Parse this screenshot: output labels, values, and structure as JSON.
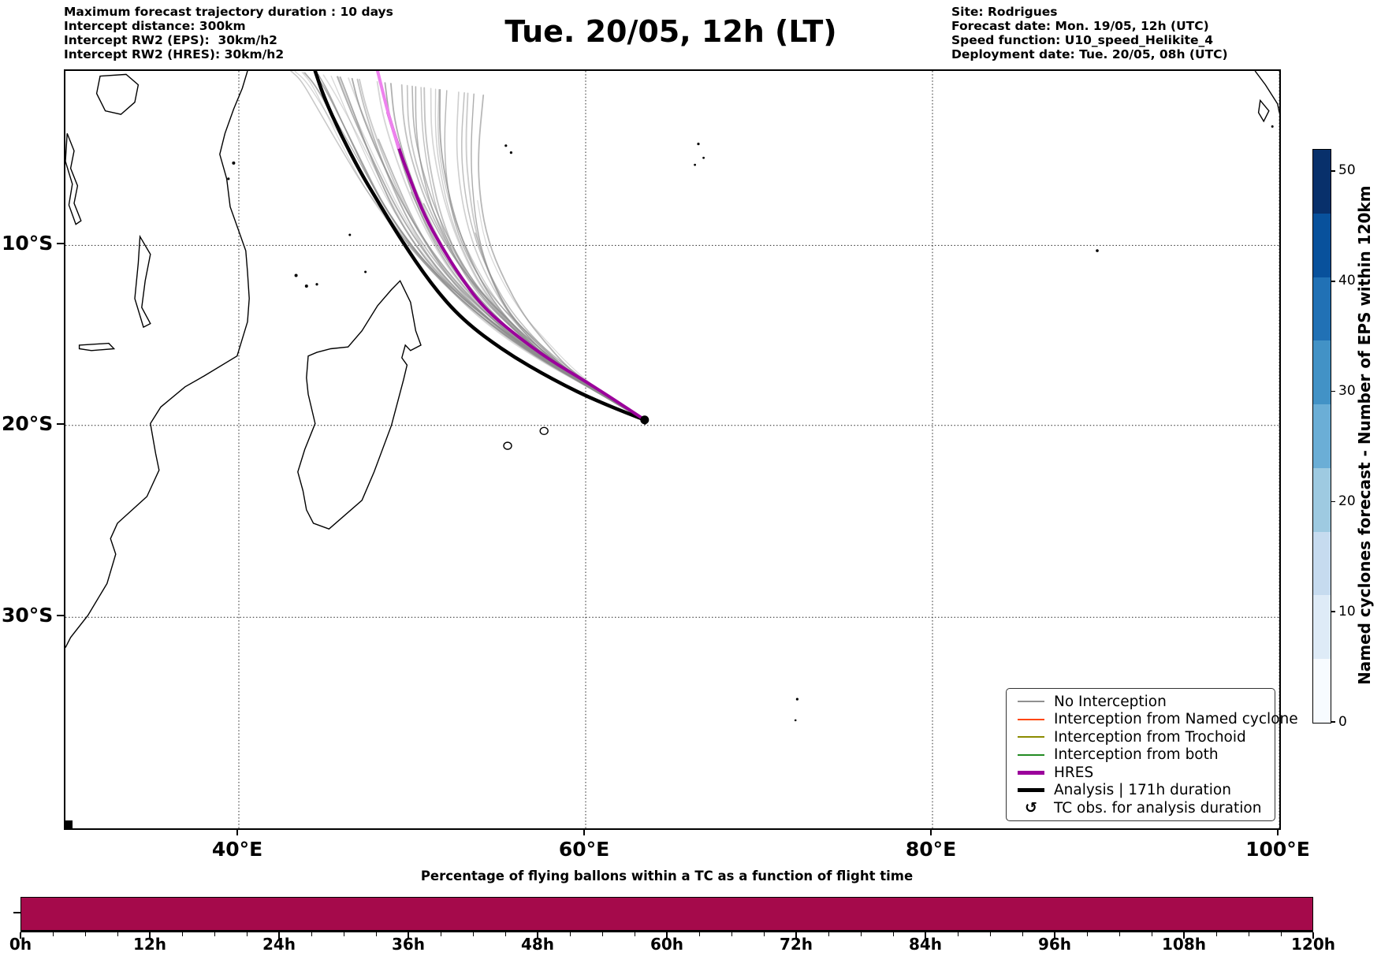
{
  "header": {
    "left_lines": [
      "Maximum forecast trajectory duration : 10 days",
      "Intercept distance: 300km",
      "Intercept RW2 (EPS):  30km/h2",
      "Intercept RW2 (HRES): 30km/h2"
    ],
    "title": "Tue. 20/05, 12h (LT)",
    "right_lines": [
      "Site: Rodrigues",
      "Forecast date: Mon. 19/05, 12h (UTC)",
      "Speed function: U10_speed_Helikite_4",
      "Deployment date: Tue. 20/05, 08h (UTC)"
    ]
  },
  "map": {
    "x_ticks": [
      {
        "label": "40°E",
        "lon": 40
      },
      {
        "label": "60°E",
        "lon": 60
      },
      {
        "label": "80°E",
        "lon": 80
      },
      {
        "label": "100°E",
        "lon": 100
      }
    ],
    "y_ticks": [
      {
        "label": "10°S",
        "lat": -10
      },
      {
        "label": "20°S",
        "lat": -20
      },
      {
        "label": "30°S",
        "lat": -30
      }
    ]
  },
  "legend": {
    "items": [
      {
        "label": "No Interception",
        "type": "line",
        "color": "#909090",
        "weight": 2
      },
      {
        "label": "Interception from Named cyclone",
        "type": "line",
        "color": "#FF4500",
        "weight": 2
      },
      {
        "label": "Interception from Trochoid",
        "type": "line",
        "color": "#8B8B00",
        "weight": 2
      },
      {
        "label": "Interception from both",
        "type": "line",
        "color": "#228B22",
        "weight": 2
      },
      {
        "label": "HRES",
        "type": "line",
        "color": "#9B009B",
        "weight": 5
      },
      {
        "label": "Analysis | 171h duration",
        "type": "line",
        "color": "#000000",
        "weight": 5
      },
      {
        "label": "TC obs. for analysis duration",
        "type": "marker",
        "glyph": "↺",
        "color": "#000000"
      }
    ]
  },
  "colorbar": {
    "label": "Named cyclones forecast - Number of EPS within 120km",
    "ticks": [
      0,
      10,
      20,
      30,
      40,
      50
    ],
    "vmax": 52,
    "colors_low_to_high": [
      "#f7fbff",
      "#deebf7",
      "#c6dbef",
      "#9ecae1",
      "#6baed6",
      "#4292c6",
      "#2171b5",
      "#08519c",
      "#08306b"
    ]
  },
  "bottom_chart": {
    "title": "Percentage of flying ballons within a TC as a function of flight time",
    "x_tick_labels": [
      "0h",
      "12h",
      "24h",
      "36h",
      "48h",
      "60h",
      "72h",
      "84h",
      "96h",
      "108h",
      "120h"
    ],
    "minor_tick_hours": 3,
    "bar_color": "#A50A4B",
    "bar_value_pct": 100
  },
  "chart_data": {
    "type": "trajectory-map",
    "projection": "Mercator",
    "map_extent": {
      "lon_min": 30,
      "lon_max": 100,
      "lat_min": -40,
      "lat_max": 0
    },
    "gridlines": {
      "lons": [
        40,
        60,
        80,
        100
      ],
      "lats": [
        -10,
        -20,
        -30
      ],
      "style": "dotted"
    },
    "tc_observed_position": {
      "lon": 63.4,
      "lat": -19.7,
      "site": "Rodrigues"
    },
    "analysis_track": {
      "name": "Analysis | 171h duration",
      "color": "#000000",
      "width": 4.5,
      "lonlat": [
        [
          44.4,
          0.0
        ],
        [
          44.9,
          -1.5
        ],
        [
          45.9,
          -3.7
        ],
        [
          47.0,
          -5.8
        ],
        [
          47.9,
          -7.3
        ],
        [
          49.3,
          -9.6
        ],
        [
          51.1,
          -12.2
        ],
        [
          52.9,
          -14.2
        ],
        [
          55.4,
          -16.0
        ],
        [
          58.1,
          -17.5
        ],
        [
          60.9,
          -18.8
        ],
        [
          63.4,
          -19.7
        ]
      ]
    },
    "hres_track": {
      "name": "HRES",
      "color": "#9B009B",
      "tail_color": "#EE82EE",
      "width": 4,
      "tail_points": 3,
      "lonlat": [
        [
          48.0,
          0.0
        ],
        [
          48.3,
          -1.2
        ],
        [
          48.6,
          -2.4
        ],
        [
          49.2,
          -4.4
        ],
        [
          49.9,
          -6.3
        ],
        [
          50.7,
          -8.3
        ],
        [
          51.7,
          -10.1
        ],
        [
          52.8,
          -11.8
        ],
        [
          54.1,
          -13.5
        ],
        [
          55.9,
          -15.0
        ],
        [
          57.9,
          -16.4
        ],
        [
          60.0,
          -17.6
        ],
        [
          61.8,
          -18.7
        ],
        [
          63.4,
          -19.7
        ]
      ]
    },
    "ensemble": {
      "name": "No Interception",
      "color": "#8C8C8C",
      "count": 42,
      "seed": 7,
      "west_envelope_lonlat": [
        [
          63.4,
          -19.7
        ],
        [
          60.2,
          -17.9
        ],
        [
          56.9,
          -16.1
        ],
        [
          53.9,
          -14.1
        ],
        [
          51.3,
          -11.9
        ],
        [
          49.2,
          -9.6
        ],
        [
          47.4,
          -7.0
        ],
        [
          46.0,
          -4.4
        ],
        [
          44.7,
          -2.1
        ],
        [
          43.7,
          -0.5
        ],
        [
          43.0,
          0.0
        ]
      ],
      "east_envelope_lonlat": [
        [
          63.4,
          -19.7
        ],
        [
          61.9,
          -18.9
        ],
        [
          60.4,
          -17.9
        ],
        [
          58.9,
          -16.8
        ],
        [
          57.5,
          -15.4
        ],
        [
          56.2,
          -13.9
        ],
        [
          55.1,
          -11.9
        ],
        [
          54.3,
          -9.8
        ],
        [
          53.9,
          -7.4
        ],
        [
          53.8,
          -4.8
        ],
        [
          54.1,
          -1.4
        ]
      ]
    },
    "balloon_chart": {
      "type": "bar",
      "x_hours": [
        0,
        120
      ],
      "bin_hours": 3,
      "value_pct": 100,
      "title": "Percentage of flying ballons within a TC as a function of flight time"
    }
  }
}
